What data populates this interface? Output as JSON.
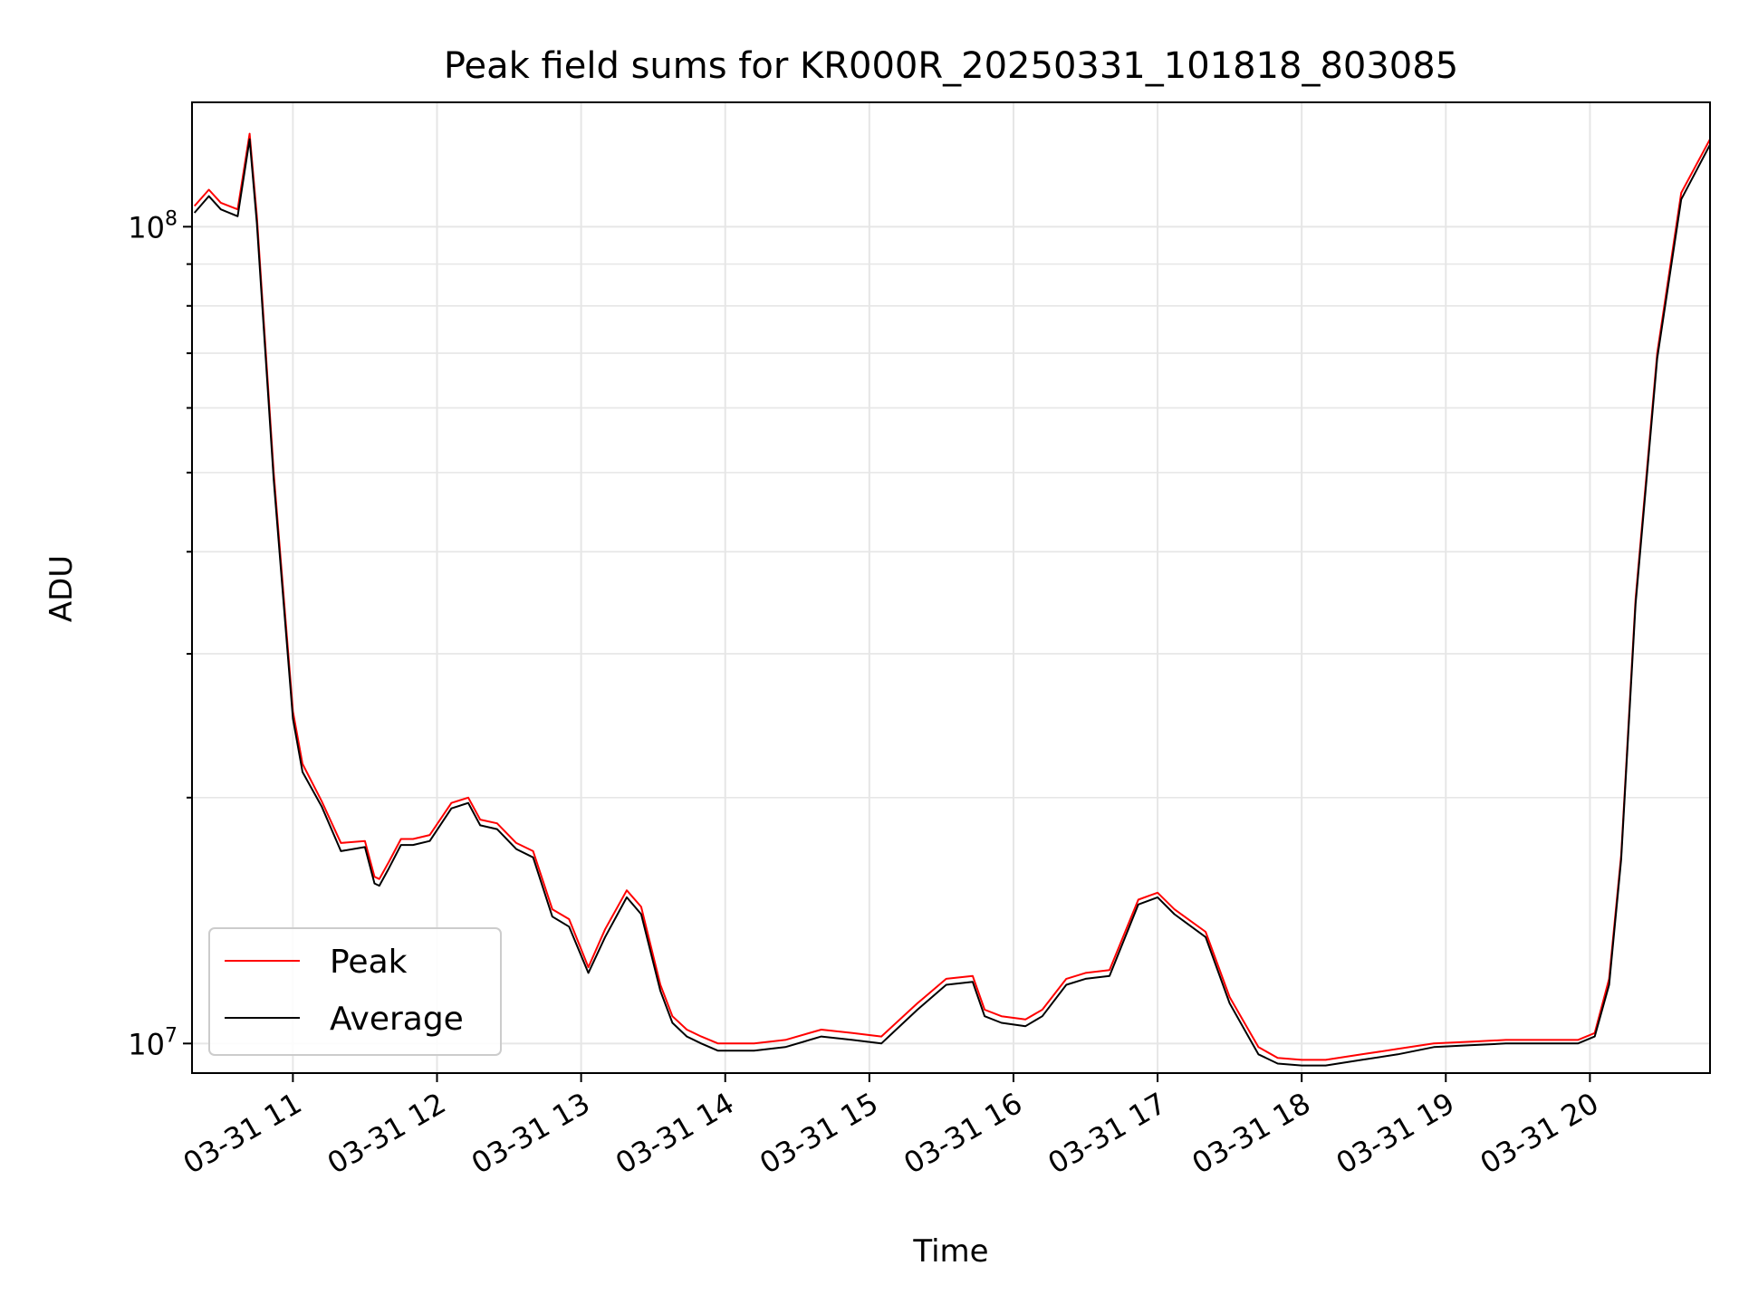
{
  "chart_data": {
    "type": "line",
    "title": "Peak field sums for KR000R_20250331_101818_803085",
    "xlabel": "Time",
    "ylabel": "ADU",
    "yscale": "log",
    "ylim": [
      9200000.0,
      142000000.0
    ],
    "xlim": [
      "2025-03-31 10:18",
      "2025-03-31 20:50"
    ],
    "x_ticks": [
      "03-31 11",
      "03-31 12",
      "03-31 13",
      "03-31 14",
      "03-31 15",
      "03-31 16",
      "03-31 17",
      "03-31 18",
      "03-31 19",
      "03-31 20"
    ],
    "y_ticks": [
      {
        "label_base": "10",
        "label_exp": "7",
        "value": 10000000.0
      },
      {
        "label_base": "10",
        "label_exp": "8",
        "value": 100000000.0
      }
    ],
    "grid": true,
    "legend_position": "lower-left",
    "x": [
      "10:19",
      "10:25",
      "10:30",
      "10:37",
      "10:42",
      "10:45",
      "10:52",
      "11:00",
      "11:04",
      "11:12",
      "11:20",
      "11:30",
      "11:34",
      "11:36",
      "11:40",
      "11:45",
      "11:50",
      "11:57",
      "12:06",
      "12:13",
      "12:18",
      "12:25",
      "12:33",
      "12:40",
      "12:48",
      "12:55",
      "13:03",
      "13:10",
      "13:19",
      "13:25",
      "13:33",
      "13:38",
      "13:44",
      "13:50",
      "13:57",
      "14:12",
      "14:25",
      "14:40",
      "14:53",
      "15:05",
      "15:20",
      "15:32",
      "15:43",
      "15:48",
      "15:55",
      "16:05",
      "16:12",
      "16:22",
      "16:30",
      "16:40",
      "16:52",
      "17:00",
      "17:07",
      "17:20",
      "17:30",
      "17:42",
      "17:50",
      "18:00",
      "18:10",
      "18:25",
      "18:40",
      "18:55",
      "19:10",
      "19:25",
      "19:40",
      "19:55",
      "20:02",
      "20:08",
      "20:13",
      "20:19",
      "20:28",
      "20:38",
      "20:50"
    ],
    "series": [
      {
        "name": "Peak",
        "color": "#ff0000",
        "values": [
          106000000,
          111000000,
          107000000,
          105000000,
          130000000,
          103000000,
          50000000,
          25500000,
          22000000,
          19800000,
          17600000,
          17700000,
          16000000,
          15900000,
          16700000,
          17800000,
          17800000,
          18000000,
          19700000,
          20000000,
          18800000,
          18600000,
          17600000,
          17200000,
          14600000,
          14200000,
          12400000,
          13800000,
          15400000,
          14700000,
          11800000,
          10800000,
          10400000,
          10200000,
          10000000,
          10000000,
          10100000,
          10400000,
          10300000,
          10200000,
          11200000,
          12000000,
          12100000,
          11000000,
          10800000,
          10700000,
          11000000,
          12000000,
          12200000,
          12300000,
          15000000,
          15300000,
          14600000,
          13700000,
          11400000,
          9900000,
          9600000,
          9550000,
          9550000,
          9700000,
          9850000,
          10000000,
          10050000,
          10100000,
          10100000,
          10100000,
          10300000,
          12000000,
          17000000,
          35000000,
          70000000,
          110000000,
          128000000
        ]
      },
      {
        "name": "Average",
        "color": "#000000",
        "values": [
          104000000,
          109000000,
          105000000,
          103000000,
          128000000,
          101000000,
          49000000,
          25000000,
          21500000,
          19500000,
          17200000,
          17400000,
          15700000,
          15600000,
          16400000,
          17500000,
          17500000,
          17700000,
          19400000,
          19700000,
          18500000,
          18300000,
          17300000,
          16900000,
          14300000,
          13900000,
          12200000,
          13500000,
          15100000,
          14400000,
          11600000,
          10600000,
          10200000,
          10000000,
          9800000,
          9800000,
          9900000,
          10200000,
          10100000,
          10000000,
          11000000,
          11800000,
          11900000,
          10800000,
          10600000,
          10500000,
          10800000,
          11800000,
          12000000,
          12100000,
          14800000,
          15100000,
          14400000,
          13500000,
          11200000,
          9700000,
          9450000,
          9400000,
          9400000,
          9550000,
          9700000,
          9900000,
          9950000,
          10000000,
          10000000,
          10000000,
          10200000,
          11800000,
          16800000,
          34500000,
          69000000,
          108000000,
          126000000
        ]
      }
    ]
  }
}
